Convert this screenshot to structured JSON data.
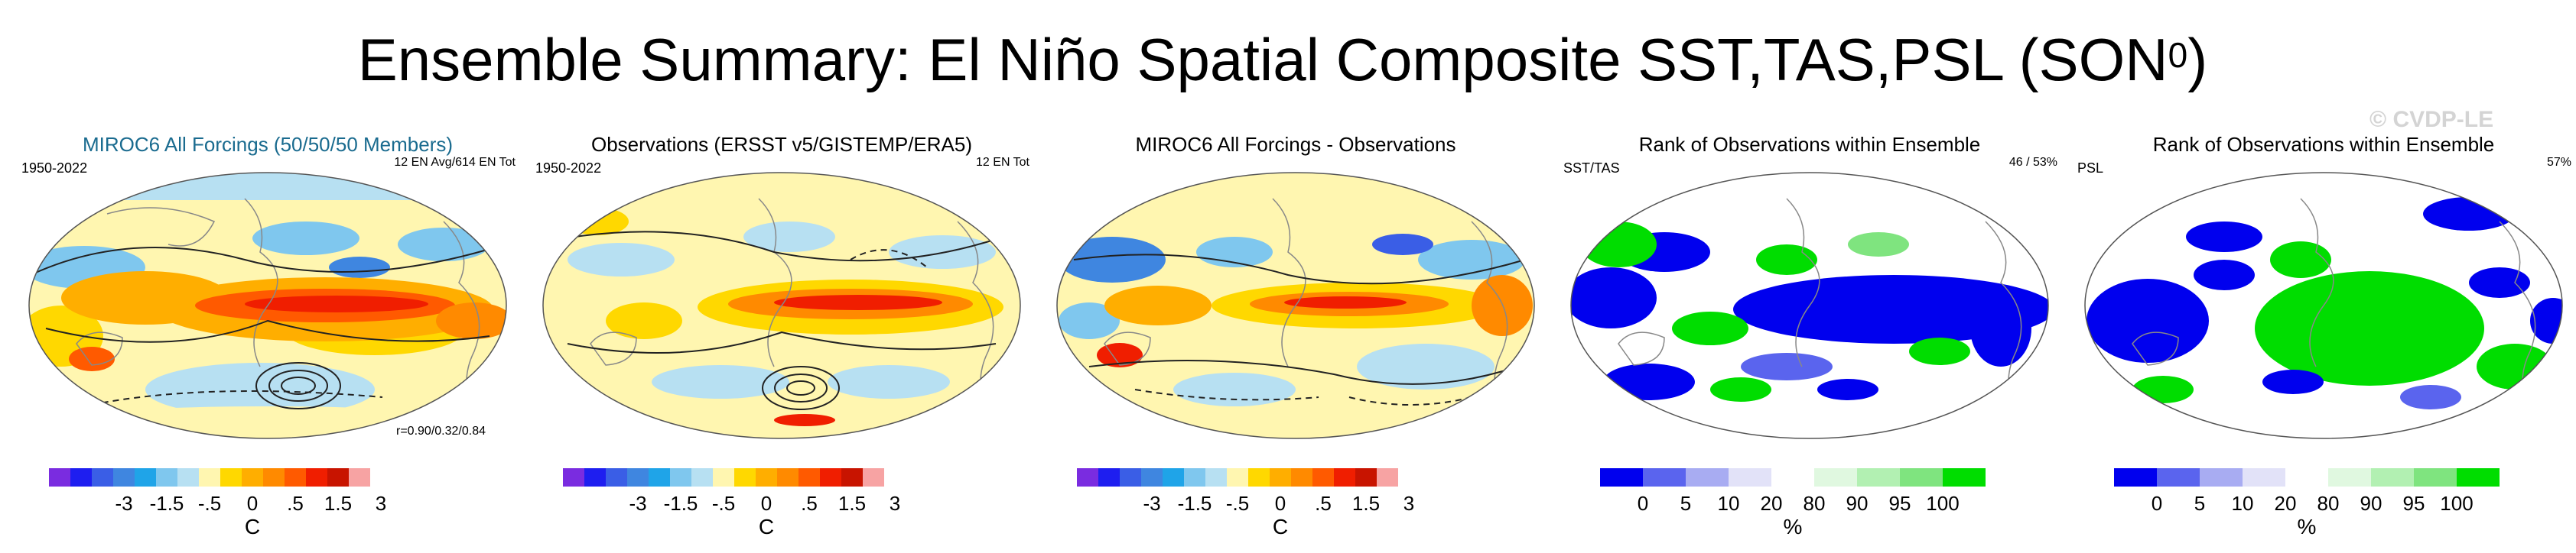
{
  "header": {
    "title": "Ensemble Summary: El Niño Spatial Composite SST,TAS,PSL (SON",
    "title_sup": "0",
    "title_close": ")"
  },
  "watermark": "© CVDP-LE",
  "colors": {
    "diverging": [
      "#7a2ce0",
      "#1e1ef0",
      "#3a5ee6",
      "#3f86e0",
      "#1fa4e8",
      "#7fc7ee",
      "#b7e0f2",
      "#fff6b0",
      "#ffd800",
      "#ffae00",
      "#ff8a00",
      "#ff5a00",
      "#f01e00",
      "#c81400",
      "#f7a3a3"
    ],
    "rank": [
      "#0000ee",
      "#5a64ee",
      "#a8acf2",
      "#e2e2f8",
      "#ffffff",
      "#e0f8e0",
      "#b2f0b2",
      "#7fe47f",
      "#00dd00"
    ]
  },
  "panels": [
    {
      "title": "MIROC6 All Forcings (50/50/50 Members)",
      "left_label": "1950-2022",
      "right_label": "12 EN Avg/614 EN Tot",
      "extra_label": "r=0.90/0.32/0.84",
      "colorbar": {
        "ticks": [
          "-3",
          "-1.5",
          "-.5",
          "0",
          ".5",
          "1.5",
          "3"
        ],
        "unit": "C"
      }
    },
    {
      "title": "Observations (ERSST v5/GISTEMP/ERA5)",
      "left_label": "1950-2022",
      "right_label": "12 EN Tot",
      "extra_label": "",
      "colorbar": {
        "ticks": [
          "-3",
          "-1.5",
          "-.5",
          "0",
          ".5",
          "1.5",
          "3"
        ],
        "unit": "C"
      }
    },
    {
      "title": "MIROC6 All Forcings - Observations",
      "left_label": "",
      "right_label": "",
      "extra_label": "",
      "colorbar": {
        "ticks": [
          "-3",
          "-1.5",
          "-.5",
          "0",
          ".5",
          "1.5",
          "3"
        ],
        "unit": "C"
      }
    },
    {
      "title": "Rank of Observations within Ensemble",
      "left_label": "SST/TAS",
      "right_label": "46 /  53%",
      "extra_label": "",
      "colorbar": {
        "ticks": [
          "0",
          "5",
          "10",
          "20",
          "80",
          "90",
          "95",
          "100"
        ],
        "unit": "%"
      }
    },
    {
      "title": "Rank of Observations within Ensemble",
      "left_label": "PSL",
      "right_label": "57%",
      "extra_label": "",
      "colorbar": {
        "ticks": [
          "0",
          "5",
          "10",
          "20",
          "80",
          "90",
          "95",
          "100"
        ],
        "unit": "%"
      }
    }
  ],
  "chart_data": [
    {
      "type": "heatmap",
      "title": "MIROC6 All Forcings (50/50/50 Members)",
      "variable": "SST/TAS anomaly with PSL contours",
      "period": "1950-2022",
      "annotation": "12 EN Avg/614 EN Tot",
      "pattern_correlation": "r=0.90/0.32/0.84",
      "colorbar_ticks": [
        -3,
        -1.5,
        -0.5,
        0,
        0.5,
        1.5,
        3
      ],
      "unit": "C"
    },
    {
      "type": "heatmap",
      "title": "Observations (ERSST v5/GISTEMP/ERA5)",
      "variable": "SST/TAS anomaly with PSL contours",
      "period": "1950-2022",
      "annotation": "12 EN Tot",
      "colorbar_ticks": [
        -3,
        -1.5,
        -0.5,
        0,
        0.5,
        1.5,
        3
      ],
      "unit": "C"
    },
    {
      "type": "heatmap",
      "title": "MIROC6 All Forcings - Observations",
      "variable": "difference",
      "colorbar_ticks": [
        -3,
        -1.5,
        -0.5,
        0,
        0.5,
        1.5,
        3
      ],
      "unit": "C"
    },
    {
      "type": "heatmap",
      "title": "Rank of Observations within Ensemble",
      "variable": "SST/TAS",
      "annotation": "46 /  53%",
      "colorbar_ticks": [
        0,
        5,
        10,
        20,
        80,
        90,
        95,
        100
      ],
      "unit": "%"
    },
    {
      "type": "heatmap",
      "title": "Rank of Observations within Ensemble",
      "variable": "PSL",
      "annotation": "57%",
      "colorbar_ticks": [
        0,
        5,
        10,
        20,
        80,
        90,
        95,
        100
      ],
      "unit": "%"
    }
  ]
}
